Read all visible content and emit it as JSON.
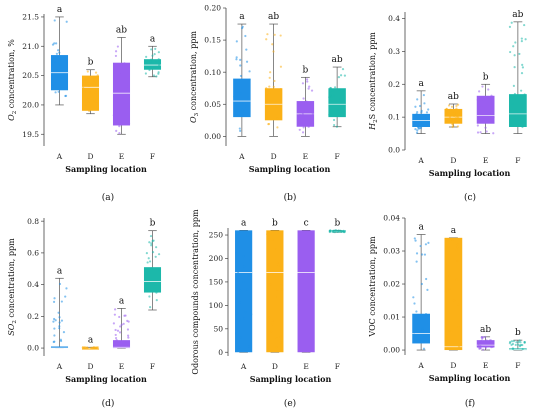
{
  "colors": {
    "A": "#1f8fe6",
    "D": "#fbb117",
    "E": "#9a5ef0",
    "F": "#1cb8aa"
  },
  "chart_data": [
    {
      "panel_label": "(a)",
      "type": "box",
      "categories": [
        "A",
        "D",
        "E",
        "F"
      ],
      "xlabel": "Sampling location",
      "ylabel_parts": [
        "O",
        "2",
        " concentration, %"
      ],
      "ylim": [
        19.3,
        21.55
      ],
      "yticks": [
        19.5,
        20.0,
        20.5,
        21.0,
        21.5
      ],
      "ytick_labels": [
        "19.5",
        "20.0",
        "20.5",
        "21.0",
        "21.5"
      ],
      "boxes": [
        {
          "category": "A",
          "min": 20.0,
          "q1": 20.25,
          "median": 20.55,
          "q3": 20.85,
          "max": 21.5,
          "letter": "a"
        },
        {
          "category": "D",
          "min": 19.85,
          "q1": 19.9,
          "median": 20.3,
          "q3": 20.5,
          "max": 20.6,
          "letter": "b"
        },
        {
          "category": "E",
          "min": 19.5,
          "q1": 19.65,
          "median": 20.2,
          "q3": 20.72,
          "max": 21.15,
          "letter": "ab"
        },
        {
          "category": "F",
          "min": 20.48,
          "q1": 20.6,
          "median": 20.68,
          "q3": 20.78,
          "max": 21.0,
          "letter": "a"
        }
      ]
    },
    {
      "panel_label": "(b)",
      "type": "box",
      "categories": [
        "A",
        "D",
        "E",
        "F"
      ],
      "xlabel": "Sampling location",
      "ylabel_parts": [
        "O",
        "3",
        " concentration, ppm"
      ],
      "ylim": [
        -0.015,
        0.2
      ],
      "yticks": [
        0.0,
        0.05,
        0.1,
        0.15,
        0.2
      ],
      "ytick_labels": [
        "0.00",
        "0.05",
        "0.10",
        "0.15",
        "0.20"
      ],
      "boxes": [
        {
          "category": "A",
          "min": 0.0,
          "q1": 0.03,
          "median": 0.055,
          "q3": 0.09,
          "max": 0.175,
          "letter": "a"
        },
        {
          "category": "D",
          "min": 0.0,
          "q1": 0.025,
          "median": 0.05,
          "q3": 0.075,
          "max": 0.175,
          "letter": "ab"
        },
        {
          "category": "E",
          "min": 0.0,
          "q1": 0.015,
          "median": 0.035,
          "q3": 0.055,
          "max": 0.092,
          "letter": "b"
        },
        {
          "category": "F",
          "min": 0.015,
          "q1": 0.03,
          "median": 0.05,
          "q3": 0.075,
          "max": 0.108,
          "letter": "ab"
        }
      ]
    },
    {
      "panel_label": "(c)",
      "type": "box",
      "categories": [
        "A",
        "D",
        "E",
        "F"
      ],
      "xlabel": "Sampling location",
      "ylabel_parts": [
        "H",
        "2",
        "S concentration, ppm"
      ],
      "ylim": [
        0.0,
        0.42
      ],
      "yticks": [
        0.0,
        0.1,
        0.2,
        0.3,
        0.4
      ],
      "ytick_labels": [
        "0.0",
        "0.1",
        "0.2",
        "0.3",
        "0.4"
      ],
      "boxes": [
        {
          "category": "A",
          "min": 0.05,
          "q1": 0.07,
          "median": 0.09,
          "q3": 0.11,
          "max": 0.18,
          "letter": "a"
        },
        {
          "category": "D",
          "min": 0.07,
          "q1": 0.08,
          "median": 0.1,
          "q3": 0.125,
          "max": 0.14,
          "letter": "ab"
        },
        {
          "category": "E",
          "min": 0.05,
          "q1": 0.08,
          "median": 0.105,
          "q3": 0.165,
          "max": 0.2,
          "letter": "b"
        },
        {
          "category": "F",
          "min": 0.05,
          "q1": 0.07,
          "median": 0.11,
          "q3": 0.17,
          "max": 0.39,
          "letter": "ab"
        }
      ]
    },
    {
      "panel_label": "(d)",
      "type": "box",
      "categories": [
        "A",
        "D",
        "E",
        "F"
      ],
      "xlabel": "Sampling location",
      "ylabel_parts": [
        "SO",
        "2",
        " concentration, ppm"
      ],
      "ylim": [
        -0.05,
        0.82
      ],
      "yticks": [
        0.0,
        0.2,
        0.4,
        0.6,
        0.8
      ],
      "ytick_labels": [
        "0.0",
        "0.2",
        "0.4",
        "0.6",
        "0.8"
      ],
      "boxes": [
        {
          "category": "A",
          "min": 0.0,
          "q1": 0.0,
          "median": 0.0,
          "q3": 0.01,
          "max": 0.44,
          "letter": "a"
        },
        {
          "category": "D",
          "min": 0.0,
          "q1": 0.0,
          "median": 0.0,
          "q3": 0.0,
          "max": 0.005,
          "letter": "a"
        },
        {
          "category": "E",
          "min": 0.0,
          "q1": 0.0,
          "median": 0.005,
          "q3": 0.05,
          "max": 0.25,
          "letter": "a"
        },
        {
          "category": "F",
          "min": 0.24,
          "q1": 0.35,
          "median": 0.42,
          "q3": 0.51,
          "max": 0.74,
          "letter": "b"
        }
      ]
    },
    {
      "panel_label": "(e)",
      "type": "box",
      "categories": [
        "A",
        "D",
        "E",
        "F"
      ],
      "xlabel": "Sampling location",
      "ylabel_parts": [
        "Odorous compounds concentration, ppm"
      ],
      "ylim": [
        -8,
        265
      ],
      "yticks": [
        0,
        50,
        100,
        150,
        200,
        250
      ],
      "ytick_labels": [
        "0",
        "50",
        "100",
        "150",
        "200",
        "250"
      ],
      "boxes": [
        {
          "category": "A",
          "min": 0,
          "q1": 0,
          "median": 170,
          "q3": 260,
          "max": 260,
          "letter": "a"
        },
        {
          "category": "D",
          "min": 0,
          "q1": 0,
          "median": 170,
          "q3": 260,
          "max": 260,
          "letter": "b"
        },
        {
          "category": "E",
          "min": 0,
          "q1": 0,
          "median": 170,
          "q3": 260,
          "max": 260,
          "letter": "c"
        },
        {
          "category": "F",
          "min": 256,
          "q1": 256,
          "median": 258,
          "q3": 260,
          "max": 260,
          "letter": "b"
        }
      ]
    },
    {
      "panel_label": "(f)",
      "type": "box",
      "categories": [
        "A",
        "D",
        "E",
        "F"
      ],
      "xlabel": "Sampling location",
      "ylabel_parts": [
        "VOC concentration, ppm"
      ],
      "ylim": [
        -0.0015,
        0.04
      ],
      "yticks": [
        0.0,
        0.01,
        0.02,
        0.03,
        0.04
      ],
      "ytick_labels": [
        "0.00",
        "0.01",
        "0.02",
        "0.03",
        "0.04"
      ],
      "boxes": [
        {
          "category": "A",
          "min": 0.0,
          "q1": 0.002,
          "median": 0.005,
          "q3": 0.011,
          "max": 0.035,
          "letter": "a"
        },
        {
          "category": "D",
          "min": 0.0,
          "q1": 0.0,
          "median": 0.001,
          "q3": 0.034,
          "max": 0.034,
          "letter": "a"
        },
        {
          "category": "E",
          "min": 0.0,
          "q1": 0.0008,
          "median": 0.0015,
          "q3": 0.003,
          "max": 0.004,
          "letter": "ab"
        },
        {
          "category": "F",
          "min": 0.0,
          "q1": 0.0,
          "median": 0.0002,
          "q3": 0.0005,
          "max": 0.003,
          "letter": "b"
        }
      ]
    }
  ]
}
